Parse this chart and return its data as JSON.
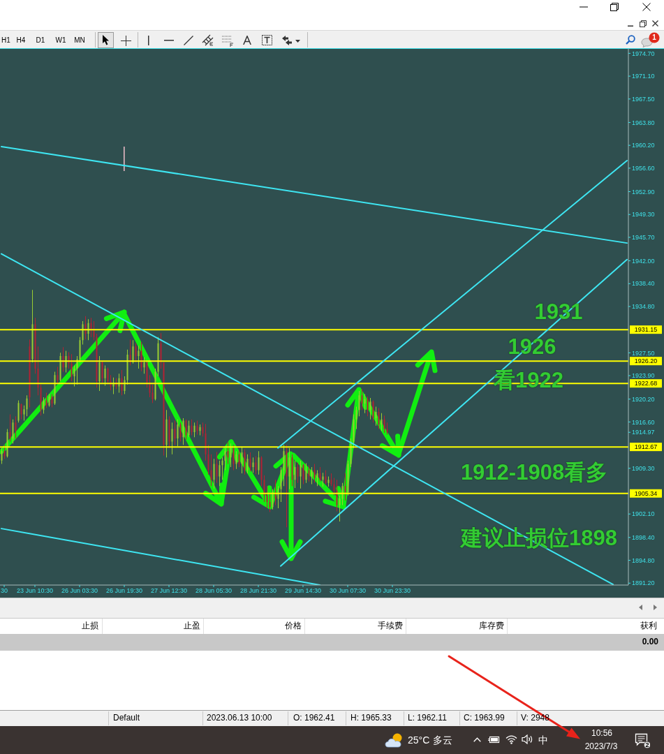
{
  "chart_data": {
    "type": "candlestick",
    "categories": [
      null,
      "30",
      null,
      null,
      null,
      null,
      null,
      null,
      null,
      null,
      null,
      null,
      "23 Jun 10:30",
      null,
      null,
      null,
      null,
      null,
      null,
      null,
      null,
      null,
      null,
      null,
      null,
      null,
      null,
      null,
      "26 Jun 03:30",
      null,
      null,
      null,
      null,
      null,
      null,
      null,
      null,
      null,
      null,
      null,
      null,
      null,
      null,
      null,
      "26 Jun 19:30",
      null,
      null,
      null,
      null,
      null,
      null,
      null,
      null,
      null,
      null,
      null,
      null,
      null,
      null,
      null,
      "27 Jun 12:30",
      null,
      null,
      null,
      null,
      null,
      null,
      null,
      null,
      null,
      null,
      null,
      null,
      null,
      null,
      null,
      "28 Jun 05:30",
      null,
      null,
      null,
      null,
      null,
      null,
      null,
      null,
      null,
      null,
      null,
      null,
      null,
      null,
      null,
      "28 Jun 21:30",
      null,
      null,
      null,
      null,
      null,
      null,
      null,
      null,
      null,
      null,
      null,
      null,
      null,
      null,
      null,
      "29 Jun 14:30",
      null,
      null,
      null,
      null,
      null,
      null,
      null,
      null,
      null,
      null,
      null,
      null,
      null,
      null,
      null,
      "30 Jun 07:30",
      null,
      null,
      null,
      null,
      null,
      null,
      null,
      null,
      null,
      null,
      null,
      null,
      null,
      null,
      null,
      "30 Jun 23:30",
      null,
      null,
      null,
      null,
      null,
      null,
      null,
      null,
      null,
      null,
      null,
      null,
      null,
      null,
      null,
      null,
      null,
      null,
      null,
      null,
      null,
      null,
      null,
      null,
      null,
      null,
      null,
      null,
      null,
      null,
      null,
      null,
      null,
      null,
      null,
      null,
      null,
      null,
      null,
      null,
      null,
      null,
      null,
      null,
      null,
      null,
      null,
      null,
      null,
      null,
      null,
      null,
      null,
      null,
      null,
      null,
      null,
      null,
      null,
      null,
      null,
      null,
      null,
      null,
      null,
      null,
      null,
      null,
      null,
      null,
      null,
      null,
      null,
      null,
      null,
      null,
      null,
      null,
      null,
      null,
      null,
      null,
      null,
      null
    ],
    "ohlc": [
      [
        1910.5,
        1912.5,
        1910.0,
        1912.0
      ],
      [
        1912.0,
        1913.0,
        1910.8,
        1911.2
      ],
      [
        1911.2,
        1915.5,
        1911.0,
        1915.0
      ],
      [
        1915.0,
        1917.8,
        1913.5,
        1914.0
      ],
      [
        1914.0,
        1917.0,
        1913.2,
        1916.5
      ],
      [
        1916.5,
        1917.5,
        1914.0,
        1915.2
      ],
      [
        1916.8,
        1920.0,
        1916.5,
        1919.6
      ],
      [
        1919.4,
        1919.5,
        1917.0,
        1917.8
      ],
      [
        1917.8,
        1919.2,
        1916.8,
        1918.6
      ],
      [
        1918.6,
        1920.8,
        1917.5,
        1920.3
      ],
      [
        1928.5,
        1929.6,
        1918.9,
        1920.5
      ],
      [
        1926.5,
        1937.4,
        1926.0,
        1932.0
      ],
      [
        1932.0,
        1933.0,
        1924.2,
        1925.0
      ],
      [
        1925.0,
        1928.5,
        1920.8,
        1922.0
      ],
      [
        1922.0,
        1922.5,
        1917.6,
        1918.5
      ],
      [
        1918.5,
        1920.5,
        1917.9,
        1920.0
      ],
      [
        1920.0,
        1921.2,
        1918.8,
        1919.2
      ],
      [
        1919.2,
        1921.0,
        1919.0,
        1920.6
      ],
      [
        1920.6,
        1921.0,
        1918.9,
        1919.5
      ],
      [
        1919.5,
        1924.5,
        1919.3,
        1924.0
      ],
      [
        1924.0,
        1925.3,
        1922.8,
        1923.2
      ],
      [
        1923.2,
        1927.5,
        1923.0,
        1927.0
      ],
      [
        1927.0,
        1928.4,
        1924.5,
        1925.2
      ],
      [
        1925.2,
        1927.8,
        1924.4,
        1927.0
      ],
      [
        1927.0,
        1927.6,
        1925.0,
        1925.8
      ],
      [
        1925.8,
        1927.3,
        1923.0,
        1923.8
      ],
      [
        1923.8,
        1925.5,
        1922.2,
        1925.0
      ],
      [
        1925.0,
        1927.0,
        1922.5,
        1926.5
      ],
      [
        1926.5,
        1930.0,
        1926.0,
        1929.5
      ],
      [
        1929.5,
        1932.5,
        1928.8,
        1932.0
      ],
      [
        1932.0,
        1933.3,
        1929.6,
        1930.5
      ],
      [
        1930.5,
        1932.8,
        1929.5,
        1932.2
      ],
      [
        1932.2,
        1933.0,
        1930.0,
        1931.0
      ],
      [
        1931.0,
        1932.5,
        1929.5,
        1930.0
      ],
      [
        1930.0,
        1930.5,
        1922.0,
        1923.0
      ],
      [
        1923.0,
        1927.0,
        1921.5,
        1926.0
      ],
      [
        1926.0,
        1926.2,
        1922.8,
        1923.5
      ],
      [
        1923.5,
        1925.5,
        1922.3,
        1925.0
      ],
      [
        1925.0,
        1925.2,
        1922.5,
        1923.0
      ],
      [
        1923.0,
        1924.0,
        1921.6,
        1922.2
      ],
      [
        1922.2,
        1923.6,
        1921.0,
        1922.8
      ],
      [
        1922.8,
        1923.5,
        1921.8,
        1922.2
      ],
      [
        1922.2,
        1924.2,
        1921.2,
        1923.5
      ],
      [
        1923.5,
        1924.8,
        1920.8,
        1921.5
      ],
      [
        1921.5,
        1923.8,
        1921.0,
        1923.2
      ],
      [
        1923.2,
        1928.0,
        1922.5,
        1927.2
      ],
      [
        1927.2,
        1929.6,
        1925.5,
        1926.0
      ],
      [
        1926.0,
        1929.5,
        1925.8,
        1928.5
      ],
      [
        1928.5,
        1929.0,
        1926.0,
        1927.0
      ],
      [
        1927.0,
        1928.6,
        1925.0,
        1927.8
      ],
      [
        1927.8,
        1929.2,
        1924.6,
        1925.2
      ],
      [
        1925.2,
        1926.8,
        1924.2,
        1926.0
      ],
      [
        1926.0,
        1926.2,
        1922.0,
        1922.8
      ],
      [
        1922.8,
        1924.0,
        1920.5,
        1921.2
      ],
      [
        1921.2,
        1922.5,
        1919.6,
        1920.2
      ],
      [
        1920.2,
        1925.0,
        1920.0,
        1924.5
      ],
      [
        1924.5,
        1930.0,
        1923.8,
        1929.0
      ],
      [
        1929.0,
        1930.6,
        1925.0,
        1926.0
      ],
      [
        1926.0,
        1926.0,
        1911.3,
        1913.0
      ],
      [
        1913.0,
        1918.5,
        1911.0,
        1917.0
      ],
      [
        1917.0,
        1917.5,
        1912.5,
        1913.5
      ],
      [
        1913.5,
        1916.5,
        1911.5,
        1915.5
      ],
      [
        1915.5,
        1916.8,
        1913.0,
        1914.0
      ],
      [
        1914.0,
        1917.0,
        1912.8,
        1916.2
      ],
      [
        1916.2,
        1916.5,
        1913.5,
        1914.2
      ],
      [
        1914.2,
        1917.2,
        1913.0,
        1916.8
      ],
      [
        1916.8,
        1917.0,
        1913.8,
        1914.5
      ],
      [
        1914.5,
        1916.8,
        1914.2,
        1916.0
      ],
      [
        1916.0,
        1917.0,
        1914.5,
        1915.0
      ],
      [
        1915.0,
        1916.5,
        1914.2,
        1916.0
      ],
      [
        1916.0,
        1916.8,
        1914.6,
        1915.2
      ],
      [
        1915.2,
        1916.2,
        1914.5,
        1915.8
      ],
      [
        1915.8,
        1916.5,
        1914.3,
        1914.8
      ],
      [
        1914.8,
        1916.3,
        1910.5,
        1911.5
      ],
      [
        1911.5,
        1913.0,
        1908.3,
        1909.0
      ],
      [
        1909.0,
        1911.5,
        1906.5,
        1907.5
      ],
      [
        1907.5,
        1910.8,
        1906.1,
        1910.0
      ],
      [
        1910.0,
        1911.9,
        1907.0,
        1908.0
      ],
      [
        1908.0,
        1910.5,
        1906.5,
        1909.8
      ],
      [
        1909.8,
        1911.0,
        1907.5,
        1910.5
      ],
      [
        1910.5,
        1912.5,
        1909.0,
        1912.0
      ],
      [
        1912.0,
        1913.4,
        1910.0,
        1911.0
      ],
      [
        1911.0,
        1913.2,
        1909.5,
        1912.5
      ],
      [
        1912.5,
        1913.0,
        1909.0,
        1910.0
      ],
      [
        1910.0,
        1912.0,
        1909.2,
        1911.5
      ],
      [
        1911.5,
        1912.2,
        1909.5,
        1910.0
      ],
      [
        1910.0,
        1912.7,
        1908.5,
        1911.8
      ],
      [
        1911.8,
        1912.3,
        1908.3,
        1909.0
      ],
      [
        1909.0,
        1911.5,
        1908.5,
        1910.8
      ],
      [
        1910.8,
        1911.8,
        1908.8,
        1909.5
      ],
      [
        1909.5,
        1911.0,
        1908.6,
        1910.2
      ],
      [
        1910.2,
        1911.2,
        1908.4,
        1909.0
      ],
      [
        1909.0,
        1912.0,
        1908.3,
        1911.0
      ],
      [
        1911.0,
        1911.2,
        1906.5,
        1907.5
      ],
      [
        1907.5,
        1908.2,
        1904.0,
        1905.0
      ],
      [
        1905.0,
        1906.5,
        1903.0,
        1904.0
      ],
      [
        1904.0,
        1905.5,
        1902.4,
        1903.2
      ],
      [
        1903.2,
        1906.0,
        1902.8,
        1905.5
      ],
      [
        1905.5,
        1907.5,
        1903.5,
        1904.5
      ],
      [
        1904.5,
        1906.5,
        1903.0,
        1906.0
      ],
      [
        1906.0,
        1909.5,
        1904.0,
        1909.0
      ],
      [
        1909.0,
        1913.0,
        1906.5,
        1912.0
      ],
      [
        1912.0,
        1913.0,
        1900.0,
        1908.0
      ],
      [
        1908.0,
        1912.5,
        1906.0,
        1911.0
      ],
      [
        1911.0,
        1911.5,
        1906.5,
        1907.5
      ],
      [
        1907.5,
        1910.5,
        1906.2,
        1909.5
      ],
      [
        1909.5,
        1910.2,
        1907.0,
        1908.0
      ],
      [
        1908.0,
        1910.5,
        1906.1,
        1909.8
      ],
      [
        1909.8,
        1910.0,
        1906.8,
        1907.5
      ],
      [
        1907.5,
        1910.1,
        1907.0,
        1909.0
      ],
      [
        1909.0,
        1909.8,
        1907.2,
        1908.0
      ],
      [
        1908.0,
        1909.5,
        1906.8,
        1909.0
      ],
      [
        1909.0,
        1910.0,
        1907.0,
        1907.8
      ],
      [
        1907.8,
        1909.0,
        1906.5,
        1908.5
      ],
      [
        1908.5,
        1909.5,
        1907.2,
        1907.5
      ],
      [
        1907.5,
        1908.6,
        1906.4,
        1908.0
      ],
      [
        1908.0,
        1909.0,
        1906.8,
        1907.0
      ],
      [
        1907.0,
        1908.0,
        1906.4,
        1907.5
      ],
      [
        1907.5,
        1908.5,
        1906.5,
        1906.8
      ],
      [
        1906.8,
        1907.8,
        1905.0,
        1905.8
      ],
      [
        1905.8,
        1907.5,
        1902.5,
        1903.5
      ],
      [
        1903.5,
        1905.0,
        1900.9,
        1904.5
      ],
      [
        1904.5,
        1907.0,
        1903.5,
        1906.5
      ],
      [
        1906.5,
        1908.5,
        1904.2,
        1905.5
      ],
      [
        1905.5,
        1910.5,
        1905.0,
        1910.0
      ],
      [
        1910.0,
        1914.0,
        1909.5,
        1913.5
      ],
      [
        1913.5,
        1917.8,
        1912.5,
        1917.0
      ],
      [
        1917.0,
        1919.0,
        1915.5,
        1918.5
      ],
      [
        1918.5,
        1921.5,
        1917.5,
        1920.8
      ],
      [
        1920.8,
        1921.8,
        1918.5,
        1919.5
      ],
      [
        1919.5,
        1921.0,
        1918.0,
        1920.2
      ],
      [
        1920.2,
        1920.6,
        1917.5,
        1918.5
      ],
      [
        1918.5,
        1920.4,
        1917.0,
        1919.8
      ],
      [
        1919.8,
        1920.0,
        1916.5,
        1917.2
      ],
      [
        1917.2,
        1919.0,
        1916.0,
        1918.2
      ],
      [
        1918.2,
        1918.8,
        1915.5,
        1916.2
      ],
      [
        1916.2,
        1918.0,
        1915.2,
        1917.0
      ],
      [
        1917.0,
        1917.6,
        1914.9,
        1915.5
      ],
      [
        1915.5,
        1916.5,
        1914.6,
        1914.97
      ],
      null,
      null,
      null,
      null,
      null,
      null,
      null,
      null,
      null,
      null,
      null,
      null,
      null,
      null,
      null,
      null,
      null,
      null,
      null,
      null,
      null,
      null,
      null,
      null,
      null,
      null,
      null,
      null,
      null,
      null,
      null,
      null,
      null,
      null,
      null,
      null,
      null,
      null,
      null,
      null,
      null,
      null,
      null,
      null,
      null,
      null,
      null,
      null,
      null,
      null,
      null,
      null,
      null,
      null,
      null,
      null,
      null,
      null,
      null,
      null,
      null,
      null,
      null,
      null,
      null,
      null,
      null,
      null,
      null,
      null,
      null,
      null,
      null,
      null,
      null,
      null,
      null,
      null,
      null,
      null,
      null,
      null,
      null,
      null,
      null,
      null
    ],
    "colors": [
      "#9acd32",
      "#b22234",
      "#9acd32",
      "#b22234",
      "#9acd32",
      "#b22234",
      "#9acd32",
      "#b22234",
      "#9acd32",
      "#9acd32",
      "#b22234",
      "#9acd32",
      "#b22234",
      "#b22234",
      "#b22234",
      "#9acd32",
      "#b22234",
      "#9acd32",
      "#b22234",
      "#9acd32",
      "#b22234",
      "#9acd32",
      "#b22234",
      "#9acd32",
      "#b22234",
      "#b22234",
      "#9acd32",
      "#9acd32",
      "#9acd32",
      "#9acd32",
      "#b22234",
      "#9acd32",
      "#b22234",
      "#b22234",
      "#b22234",
      "#9acd32",
      "#b22234",
      "#9acd32",
      "#b22234",
      "#b22234",
      "#9acd32",
      "#b22234",
      "#9acd32",
      "#b22234",
      "#9acd32",
      "#9acd32",
      "#b22234",
      "#9acd32",
      "#b22234",
      "#9acd32",
      "#b22234",
      "#9acd32",
      "#b22234",
      "#b22234",
      "#b22234",
      "#9acd32",
      "#9acd32",
      "#b22234",
      "#b22234",
      "#9acd32",
      "#b22234",
      "#9acd32",
      "#b22234",
      "#9acd32",
      "#b22234",
      "#9acd32",
      "#b22234",
      "#9acd32",
      "#b22234",
      "#9acd32",
      "#b22234",
      "#9acd32",
      "#b22234",
      "#b22234",
      "#b22234",
      "#b22234",
      "#9acd32",
      "#b22234",
      "#9acd32",
      "#9acd32",
      "#9acd32",
      "#b22234",
      "#9acd32",
      "#b22234",
      "#9acd32",
      "#b22234",
      "#9acd32",
      "#b22234",
      "#9acd32",
      "#b22234",
      "#9acd32",
      "#b22234",
      "#9acd32",
      "#b22234",
      "#b22234",
      "#b22234",
      "#b22234",
      "#9acd32",
      "#b22234",
      "#9acd32",
      "#9acd32",
      "#9acd32",
      "#b22234",
      "#9acd32",
      "#b22234",
      "#9acd32",
      "#b22234",
      "#9acd32",
      "#b22234",
      "#9acd32",
      "#b22234",
      "#9acd32",
      "#b22234",
      "#9acd32",
      "#b22234",
      "#9acd32",
      "#b22234",
      "#9acd32",
      "#b22234",
      "#b22234",
      "#b22234",
      "#9acd32",
      "#9acd32",
      "#b22234",
      "#9acd32",
      "#9acd32",
      "#9acd32",
      "#9acd32",
      "#9acd32",
      "#b22234",
      "#9acd32",
      "#b22234",
      "#9acd32",
      "#b22234",
      "#9acd32",
      "#b22234",
      "#9acd32",
      "#b22234",
      "#b22234",
      null,
      null,
      null,
      null,
      null,
      null,
      null,
      null,
      null,
      null,
      null,
      null,
      null,
      null,
      null,
      null,
      null,
      null,
      null,
      null,
      null,
      null,
      null,
      null,
      null,
      null,
      null,
      null,
      null,
      null,
      null,
      null,
      null,
      null,
      null,
      null,
      null,
      null,
      null,
      null,
      null,
      null,
      null,
      null,
      null,
      null,
      null,
      null,
      null,
      null,
      null,
      null,
      null,
      null,
      null,
      null,
      null,
      null,
      null,
      null,
      null,
      null,
      null,
      null,
      null,
      null,
      null,
      null,
      null,
      null,
      null,
      null,
      null,
      null,
      null,
      null,
      null,
      null,
      null,
      null,
      null,
      null,
      null,
      null,
      null,
      null
    ],
    "ylim": [
      1890.9,
      1975.4
    ],
    "yticks": [
      {
        "value": 1974.7,
        "label": "1974.70"
      },
      {
        "value": 1971.1,
        "label": "1971.10"
      },
      {
        "value": 1967.5,
        "label": "1967.50"
      },
      {
        "value": 1963.8,
        "label": "1963.80"
      },
      {
        "value": 1960.2,
        "label": "1960.20"
      },
      {
        "value": 1956.6,
        "label": "1956.60"
      },
      {
        "value": 1952.9,
        "label": "1952.90"
      },
      {
        "value": 1949.3,
        "label": "1949.30"
      },
      {
        "value": 1945.7,
        "label": "1945.70"
      },
      {
        "value": 1942,
        "label": "1942.00"
      },
      {
        "value": 1938.4,
        "label": "1938.40"
      },
      {
        "value": 1934.8,
        "label": "1934.80"
      },
      {
        "value": 1927.5,
        "label": "1927.50"
      },
      {
        "value": 1923.9,
        "label": "1923.90"
      },
      {
        "value": 1920.2,
        "label": "1920.20"
      },
      {
        "value": 1916.6,
        "label": "1916.60"
      },
      1914.97,
      {
        "value": 1909.3,
        "label": "1909.30"
      },
      {
        "value": 1902.1,
        "label": "1902.10"
      },
      {
        "value": 1898.4,
        "label": "1898.40"
      },
      {
        "value": 1894.8,
        "label": "1894.80"
      },
      {
        "value": 1891.2,
        "label": "1891.20"
      }
    ],
    "series": [
      {
        "type": "line",
        "color": "#3ee6f2",
        "values": [
          1960.0,
          null,
          null,
          null,
          null,
          null,
          null,
          null,
          null,
          null,
          null,
          null,
          null,
          null,
          null,
          null,
          null,
          null,
          null,
          null,
          null,
          null,
          null,
          null,
          null,
          null,
          null,
          null,
          null,
          null,
          null,
          null,
          null,
          null,
          null,
          null,
          null,
          null,
          null,
          null,
          null,
          null,
          null,
          null,
          null,
          null,
          null,
          null,
          null,
          null,
          null,
          null,
          null,
          null,
          null,
          null,
          null,
          null,
          null,
          null,
          null,
          null,
          null,
          null,
          null,
          null,
          null,
          null,
          null,
          null,
          null,
          null,
          null,
          null,
          null,
          null,
          null,
          null,
          null,
          null,
          null,
          null,
          null,
          null,
          null,
          null,
          null,
          null,
          null,
          null,
          null,
          null,
          null,
          null,
          null,
          null,
          null,
          null,
          null,
          null,
          null,
          null,
          null,
          null,
          null,
          null,
          null,
          null,
          null,
          null,
          null,
          null,
          null,
          null,
          null,
          null,
          null,
          null,
          null,
          null,
          null,
          null,
          null,
          null,
          null,
          null,
          null,
          null,
          null,
          null,
          null,
          null,
          null,
          null,
          null,
          null,
          null,
          null,
          null,
          null,
          null,
          null,
          null,
          null,
          null,
          null,
          null,
          null,
          null,
          null,
          null,
          null,
          null,
          null,
          null,
          null,
          null,
          null,
          null,
          null,
          null,
          null,
          null,
          null,
          null,
          null,
          null,
          null,
          null,
          null,
          null,
          null,
          null,
          null,
          null,
          null,
          null,
          null,
          null,
          null,
          null,
          null,
          null,
          null,
          null,
          null,
          null,
          null,
          null,
          null,
          null,
          null,
          null,
          null,
          null,
          null,
          null,
          null,
          null,
          null,
          null,
          null,
          null,
          null,
          null,
          null,
          null,
          null,
          null,
          null,
          null,
          null,
          null,
          null,
          null,
          null,
          null,
          null,
          null,
          null,
          null,
          null,
          null,
          null,
          1944.8
        ]
      },
      {
        "type": "line",
        "color": "#3ee6f2",
        "values": [
          1943.1,
          null,
          null,
          null,
          null,
          null,
          null,
          null,
          null,
          null,
          null,
          null,
          null,
          null,
          null,
          null,
          null,
          null,
          null,
          null,
          null,
          null,
          null,
          null,
          null,
          null,
          null,
          null,
          null,
          null,
          null,
          null,
          null,
          null,
          null,
          null,
          null,
          null,
          null,
          null,
          null,
          null,
          null,
          null,
          null,
          null,
          null,
          null,
          null,
          null,
          null,
          null,
          null,
          null,
          null,
          null,
          null,
          null,
          null,
          null,
          null,
          null,
          null,
          null,
          null,
          null,
          null,
          null,
          null,
          null,
          null,
          null,
          null,
          null,
          null,
          null,
          null,
          null,
          null,
          null,
          null,
          null,
          null,
          null,
          null,
          null,
          null,
          null,
          null,
          null,
          null,
          null,
          null,
          null,
          null,
          null,
          null,
          null,
          null,
          null,
          null,
          null,
          null,
          null,
          null,
          null,
          null,
          null,
          null,
          null,
          null,
          null,
          null,
          null,
          null,
          null,
          null,
          null,
          null,
          null,
          null,
          null,
          null,
          null,
          null,
          null,
          null,
          null,
          null,
          null,
          null,
          null,
          null,
          null,
          null,
          null,
          null,
          null,
          null,
          null,
          null,
          null,
          null,
          null,
          null,
          null,
          null,
          null,
          null,
          null,
          null,
          null,
          null,
          null,
          null,
          null,
          null,
          null,
          null,
          null,
          null,
          null,
          null,
          null,
          null,
          null,
          null,
          null,
          null,
          null,
          null,
          null,
          null,
          null,
          null,
          null,
          null,
          null,
          null,
          null,
          null,
          null,
          null,
          null,
          null,
          null,
          null,
          null,
          null,
          null,
          null,
          null,
          null,
          null,
          null,
          null,
          null,
          null,
          null,
          null,
          null,
          null,
          null,
          null,
          null,
          null,
          null,
          null,
          null,
          null,
          null,
          null,
          null,
          null,
          null,
          null,
          null,
          null,
          null,
          1891.0,
          null,
          null,
          null,
          null,
          null
        ]
      },
      {
        "type": "line",
        "color": "#3ee6f2",
        "values": [
          1899.8,
          null,
          null,
          null,
          null,
          null,
          null,
          null,
          null,
          null,
          null,
          null,
          null,
          null,
          null,
          null,
          null,
          null,
          null,
          null,
          null,
          null,
          null,
          null,
          null,
          null,
          null,
          null,
          null,
          null,
          null,
          null,
          null,
          null,
          null,
          null,
          null,
          null,
          null,
          null,
          null,
          null,
          null,
          null,
          null,
          null,
          null,
          null,
          null,
          null,
          null,
          null,
          null,
          null,
          null,
          null,
          null,
          null,
          null,
          null,
          null,
          null,
          null,
          null,
          null,
          null,
          null,
          null,
          null,
          null,
          null,
          null,
          null,
          null,
          null,
          null,
          null,
          null,
          null,
          null,
          null,
          null,
          null,
          null,
          null,
          null,
          null,
          null,
          null,
          null,
          null,
          null,
          null,
          null,
          null,
          null,
          null,
          null,
          null,
          null,
          null,
          null,
          null,
          null,
          null,
          null,
          null,
          null,
          null,
          null,
          null,
          null,
          null,
          null,
          1890.9,
          null,
          null,
          null,
          null,
          null,
          null,
          null,
          null,
          null,
          null,
          null,
          null,
          null,
          null,
          null,
          null,
          null,
          null,
          null,
          null,
          null,
          null,
          null,
          null,
          null,
          null,
          null,
          null,
          null,
          null,
          null,
          null,
          null,
          null,
          null,
          null,
          null,
          null,
          null,
          null,
          null,
          null,
          null,
          null,
          null,
          null,
          null,
          null,
          null,
          null,
          null,
          null,
          null,
          null,
          null,
          null,
          null,
          null,
          null,
          null,
          null,
          null,
          null,
          null,
          null,
          null,
          null,
          null,
          null,
          null,
          null,
          null,
          null,
          null,
          null,
          null,
          null,
          null,
          null,
          null,
          null,
          null,
          null,
          null,
          null,
          null,
          null,
          null,
          null,
          null,
          null,
          null,
          null,
          null,
          null,
          null,
          null,
          null,
          null,
          null,
          null,
          null,
          null,
          null,
          null,
          null,
          null,
          null,
          null,
          null
        ]
      },
      {
        "type": "line",
        "color": "#3ee6f2",
        "values": [
          null,
          null,
          null,
          null,
          null,
          null,
          null,
          null,
          null,
          null,
          null,
          null,
          null,
          null,
          null,
          null,
          null,
          null,
          null,
          null,
          null,
          null,
          null,
          null,
          null,
          null,
          null,
          null,
          null,
          null,
          null,
          null,
          null,
          null,
          null,
          null,
          null,
          null,
          null,
          null,
          null,
          null,
          null,
          null,
          null,
          null,
          null,
          null,
          null,
          null,
          null,
          null,
          null,
          null,
          null,
          null,
          null,
          null,
          null,
          null,
          null,
          null,
          null,
          null,
          null,
          null,
          null,
          null,
          null,
          null,
          null,
          null,
          null,
          null,
          null,
          null,
          null,
          null,
          null,
          null,
          null,
          null,
          null,
          null,
          null,
          null,
          null,
          null,
          null,
          null,
          null,
          null,
          null,
          null,
          null,
          null,
          null,
          null,
          null,
          1912.5,
          null,
          null,
          null,
          null,
          null,
          null,
          null,
          null,
          null,
          null,
          null,
          null,
          null,
          null,
          null,
          null,
          null,
          null,
          null,
          null,
          null,
          null,
          null,
          null,
          null,
          null,
          null,
          null,
          null,
          null,
          null,
          null,
          null,
          null,
          null,
          null,
          null,
          null,
          null,
          null,
          null,
          null,
          null,
          null,
          null,
          null,
          null,
          null,
          null,
          null,
          null,
          null,
          null,
          null,
          null,
          null,
          null,
          null,
          null,
          null,
          null,
          null,
          null,
          null,
          null,
          null,
          null,
          null,
          null,
          null,
          null,
          null,
          null,
          null,
          null,
          null,
          null,
          null,
          null,
          null,
          null,
          null,
          null,
          null,
          null,
          null,
          null,
          null,
          null,
          null,
          null,
          null,
          null,
          null,
          null,
          null,
          null,
          null,
          null,
          null,
          null,
          null,
          null,
          null,
          null,
          null,
          null,
          null,
          null,
          null,
          null,
          null,
          null,
          null,
          null,
          null,
          null,
          null,
          null,
          null,
          null,
          null,
          null,
          null,
          1957.8
        ]
      },
      {
        "type": "line",
        "color": "#3ee6f2",
        "values": [
          null,
          null,
          null,
          null,
          null,
          null,
          null,
          null,
          null,
          null,
          null,
          null,
          null,
          null,
          null,
          null,
          null,
          null,
          null,
          null,
          null,
          null,
          null,
          null,
          null,
          null,
          null,
          null,
          null,
          null,
          null,
          null,
          null,
          null,
          null,
          null,
          null,
          null,
          null,
          null,
          null,
          null,
          null,
          null,
          null,
          null,
          null,
          null,
          null,
          null,
          null,
          null,
          null,
          null,
          null,
          null,
          null,
          null,
          null,
          null,
          null,
          null,
          null,
          null,
          null,
          null,
          null,
          null,
          null,
          null,
          null,
          null,
          null,
          null,
          null,
          null,
          null,
          null,
          null,
          null,
          null,
          null,
          null,
          null,
          null,
          null,
          null,
          null,
          null,
          null,
          null,
          null,
          null,
          null,
          null,
          null,
          null,
          null,
          null,
          null,
          1893.9,
          null,
          null,
          null,
          null,
          null,
          null,
          null,
          null,
          null,
          null,
          null,
          null,
          null,
          null,
          null,
          null,
          null,
          null,
          null,
          null,
          null,
          null,
          null,
          null,
          null,
          null,
          null,
          null,
          null,
          null,
          null,
          null,
          null,
          null,
          null,
          null,
          null,
          null,
          null,
          null,
          null,
          null,
          null,
          null,
          null,
          null,
          null,
          null,
          null,
          null,
          null,
          null,
          null,
          null,
          null,
          null,
          null,
          null,
          null,
          null,
          null,
          null,
          null,
          null,
          null,
          null,
          null,
          null,
          null,
          null,
          null,
          null,
          null,
          null,
          null,
          null,
          null,
          null,
          null,
          null,
          null,
          null,
          null,
          null,
          null,
          null,
          null,
          null,
          null,
          null,
          null,
          null,
          null,
          null,
          null,
          null,
          null,
          null,
          null,
          null,
          null,
          null,
          null,
          null,
          null,
          null,
          null,
          null,
          null,
          null,
          null,
          null,
          null,
          null,
          null,
          null,
          null,
          null,
          null,
          null,
          null,
          null,
          null,
          1942.2
        ]
      }
    ],
    "ref_lines": [
      {
        "axis": "y",
        "value": 1931.15,
        "label": "1931.15",
        "color": "#ffff00"
      },
      {
        "axis": "y",
        "value": 1926.2,
        "label": "1926.20",
        "color": "#ffff00"
      },
      {
        "axis": "y",
        "value": 1922.68,
        "label": "1922.68",
        "color": "#ffff00"
      },
      {
        "axis": "y",
        "value": 1912.67,
        "label": "1912.67",
        "color": "#ffff00"
      },
      {
        "axis": "y",
        "value": 1905.34,
        "label": "1905.34",
        "color": "#ffff00"
      }
    ],
    "annotations": [
      "H1",
      "H4",
      "D1",
      "W1",
      "MN",
      "1",
      "1931",
      "1926",
      "看1922",
      "1912-1908看多",
      "建议止损位1898",
      "止损",
      "止盈",
      "价格",
      "手续费",
      "库存费",
      "获利",
      "0.00",
      "Default",
      "2023.06.13 10:00",
      "O: 1962.41",
      "H: 1965.33",
      "L: 1962.11",
      "C: 1963.99",
      "V: 2948",
      "25°C",
      "多云",
      "中",
      "10:56",
      "2023/7/3",
      "2"
    ]
  }
}
